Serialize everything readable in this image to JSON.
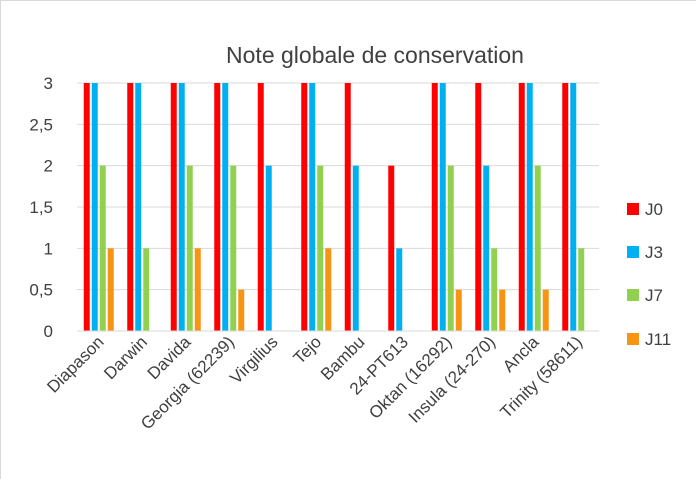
{
  "chart_data": {
    "type": "bar",
    "title": "Note globale de conservation",
    "xlabel": "",
    "ylabel": "",
    "ylim": [
      0,
      3
    ],
    "yticks": [
      "0",
      "0,5",
      "1",
      "1,5",
      "2",
      "2,5",
      "3"
    ],
    "grid": true,
    "legend_position": "right",
    "categories": [
      "Diapason",
      "Darwin",
      "Davida",
      "Georgia (62239)",
      "Virgilius",
      "Tejo",
      "Bambu",
      "24-PT613",
      "Oktan (16292)",
      "Insula (24-270)",
      "Ancla",
      "Trinity (58611)"
    ],
    "series": [
      {
        "name": "J0",
        "color": "#ff0000",
        "values": [
          3,
          3,
          3,
          3,
          3,
          3,
          3,
          2,
          3,
          3,
          3,
          3
        ]
      },
      {
        "name": "J3",
        "color": "#00b0f0",
        "values": [
          3,
          3,
          3,
          3,
          2,
          3,
          2,
          1,
          3,
          2,
          3,
          3
        ]
      },
      {
        "name": "J7",
        "color": "#92d050",
        "values": [
          2,
          1,
          2,
          2,
          0,
          2,
          0,
          0,
          2,
          1,
          2,
          1
        ]
      },
      {
        "name": "J11",
        "color": "#f79414",
        "values": [
          1,
          0,
          1,
          0.5,
          0,
          1,
          0,
          0,
          0.5,
          0.5,
          0.5,
          0
        ]
      }
    ]
  }
}
